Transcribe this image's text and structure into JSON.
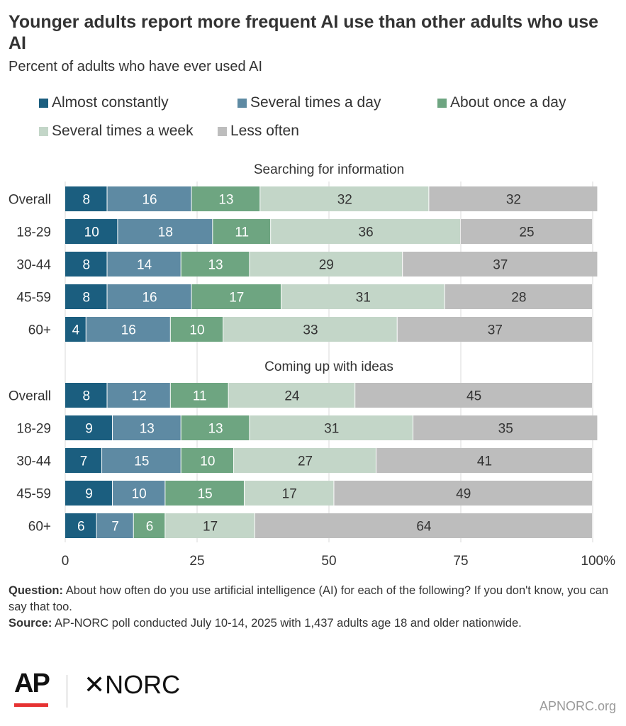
{
  "header": {
    "title": "Younger adults report more frequent AI use than other adults who use AI",
    "subtitle": "Percent of adults who have ever used AI"
  },
  "colors": {
    "almost_constantly": "#1b5e7f",
    "several_times_a_day": "#5e8aa3",
    "about_once_a_day": "#6ea581",
    "several_times_a_week": "#c3d6c8",
    "less_often": "#bdbdbd",
    "grid": "#d8d8d8",
    "ap_red": "#e63232"
  },
  "chart_data": {
    "type": "bar",
    "orientation": "horizontal",
    "stacked": true,
    "xlim": [
      0,
      100
    ],
    "xticks": [
      "0",
      "25",
      "50",
      "75",
      "100%"
    ],
    "categories": [
      "Overall",
      "18-29",
      "30-44",
      "45-59",
      "60+"
    ],
    "legend_placement": "top",
    "series_names": [
      "Almost constantly",
      "Several times a day",
      "About once a day",
      "Several times a week",
      "Less often"
    ],
    "panels": [
      {
        "title": "Searching for information",
        "values": [
          [
            8,
            16,
            13,
            32,
            32
          ],
          [
            10,
            18,
            11,
            36,
            25
          ],
          [
            8,
            14,
            13,
            29,
            37
          ],
          [
            8,
            16,
            17,
            31,
            28
          ],
          [
            4,
            16,
            10,
            33,
            37
          ]
        ]
      },
      {
        "title": "Coming up with ideas",
        "values": [
          [
            8,
            12,
            11,
            24,
            45
          ],
          [
            9,
            13,
            13,
            31,
            35
          ],
          [
            7,
            15,
            10,
            27,
            41
          ],
          [
            9,
            10,
            15,
            17,
            49
          ],
          [
            6,
            7,
            6,
            17,
            64
          ]
        ]
      }
    ]
  },
  "footer": {
    "question_label": "Question:",
    "question_text": "About how often do you use artificial intelligence (AI) for each of the following? If you don't know, you can say that too.",
    "source_label": "Source:",
    "source_text": "AP-NORC poll conducted July 10-14, 2025 with 1,437 adults age 18 and older nationwide."
  },
  "branding": {
    "ap": "AP",
    "norc": "NORC",
    "norc_mark": "✕",
    "url": "APNORC.org"
  }
}
